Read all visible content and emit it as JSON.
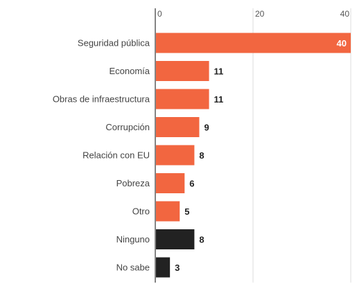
{
  "chart_data": {
    "type": "bar",
    "orientation": "horizontal",
    "xlim": [
      0,
      40
    ],
    "ticks": [
      0,
      20,
      40
    ],
    "grid": true,
    "categories": [
      "Seguridad pública",
      "Economía",
      "Obras de infraestructura",
      "Corrupción",
      "Relación con EU",
      "Pobreza",
      "Otro",
      "Ninguno",
      "No sabe"
    ],
    "values": [
      40,
      11,
      11,
      9,
      8,
      6,
      5,
      8,
      3
    ],
    "bar_colors": [
      "#f26640",
      "#f26640",
      "#f26640",
      "#f26640",
      "#f26640",
      "#f26640",
      "#f26640",
      "#222222",
      "#222222"
    ],
    "value_label_colors": [
      "#ffffff",
      "#222222",
      "#222222",
      "#222222",
      "#222222",
      "#222222",
      "#222222",
      "#222222",
      "#222222"
    ]
  }
}
